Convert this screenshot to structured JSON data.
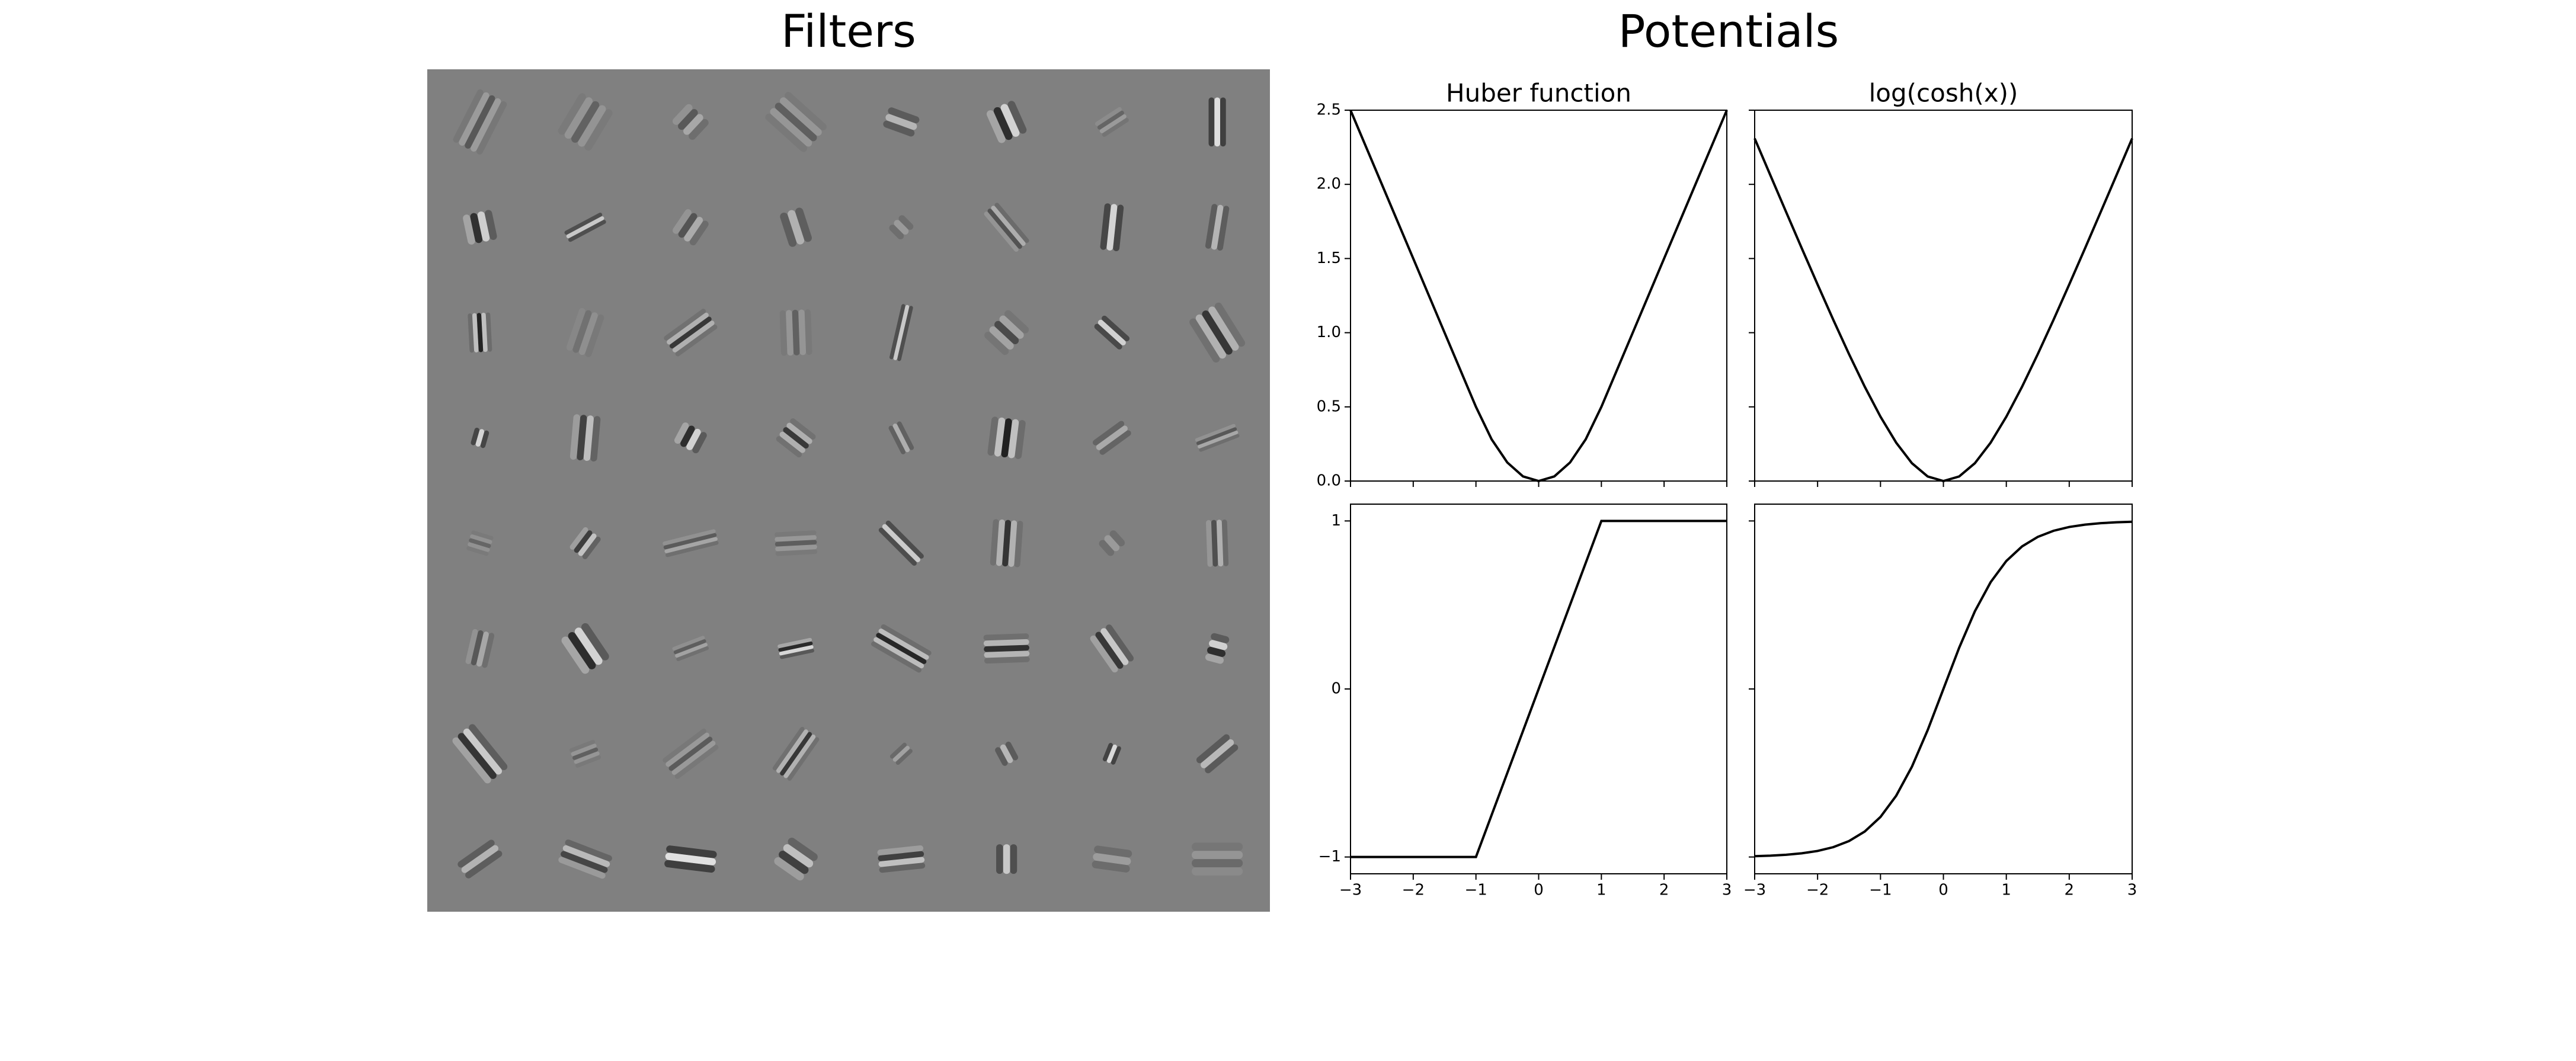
{
  "chart_data": [
    {
      "type": "image",
      "title": "Filters"
    },
    {
      "type": "line",
      "suptitle": "Potentials",
      "title": "Huber function",
      "color": "#000000",
      "x": [
        -3,
        -2.75,
        -2.5,
        -2.25,
        -2,
        -1.75,
        -1.5,
        -1.25,
        -1,
        -0.75,
        -0.5,
        -0.25,
        0,
        0.25,
        0.5,
        0.75,
        1,
        1.25,
        1.5,
        1.75,
        2,
        2.25,
        2.5,
        2.75,
        3
      ],
      "values": [
        2.5,
        2.25,
        2,
        1.75,
        1.5,
        1.25,
        1,
        0.75,
        0.5,
        0.28125,
        0.125,
        0.03125,
        0,
        0.03125,
        0.125,
        0.28125,
        0.5,
        0.75,
        1,
        1.25,
        1.5,
        1.75,
        2,
        2.25,
        2.5
      ],
      "xlim": [
        -3,
        3
      ],
      "ylim": [
        0,
        2.5
      ],
      "xticks": [
        -3,
        -2,
        -1,
        0,
        1,
        2,
        3
      ],
      "yticks": [
        {
          "value": 0,
          "label": "0.0"
        },
        0.5,
        {
          "value": 1,
          "label": "1.0"
        },
        1.5,
        {
          "value": 2,
          "label": "2.0"
        },
        2.5
      ],
      "xtick_labels": false,
      "ytick_labels": true
    },
    {
      "type": "line",
      "title": "log(cosh(x))",
      "color": "#000000",
      "x": [
        -3,
        -2.75,
        -2.5,
        -2.25,
        -2,
        -1.75,
        -1.5,
        -1.25,
        -1,
        -0.75,
        -0.5,
        -0.25,
        0,
        0.25,
        0.5,
        0.75,
        1,
        1.25,
        1.5,
        1.75,
        2,
        2.25,
        2.5,
        2.75,
        3
      ],
      "values": [
        2.3093,
        2.0609,
        1.8136,
        1.5679,
        1.325,
        1.0866,
        0.8555,
        0.6357,
        0.4338,
        0.2583,
        0.1201,
        0.0309,
        0,
        0.0309,
        0.1201,
        0.2583,
        0.4338,
        0.6357,
        0.8555,
        1.0866,
        1.325,
        1.5679,
        1.8136,
        2.0609,
        2.3093
      ],
      "xlim": [
        -3,
        3
      ],
      "ylim": [
        0,
        2.5
      ],
      "xticks": [
        -3,
        -2,
        -1,
        0,
        1,
        2,
        3
      ],
      "yticks": [
        0,
        0.5,
        1,
        1.5,
        2,
        2.5
      ],
      "xtick_labels": false,
      "ytick_labels": false
    },
    {
      "type": "line",
      "color": "#000000",
      "x": [
        -3,
        -2.75,
        -2.5,
        -2.25,
        -2,
        -1.75,
        -1.5,
        -1.25,
        -1,
        -0.75,
        -0.5,
        -0.25,
        0,
        0.25,
        0.5,
        0.75,
        1,
        1.25,
        1.5,
        1.75,
        2,
        2.25,
        2.5,
        2.75,
        3
      ],
      "values": [
        -1,
        -1,
        -1,
        -1,
        -1,
        -1,
        -1,
        -1,
        -1,
        -0.75,
        -0.5,
        -0.25,
        0,
        0.25,
        0.5,
        0.75,
        1,
        1,
        1,
        1,
        1,
        1,
        1,
        1,
        1
      ],
      "xlim": [
        -3,
        3
      ],
      "ylim": [
        -1.1,
        1.1
      ],
      "xticks": [
        {
          "value": -3,
          "label": "−3"
        },
        {
          "value": -2,
          "label": "−2"
        },
        {
          "value": -1,
          "label": "−1"
        },
        0,
        1,
        2,
        3
      ],
      "yticks": [
        {
          "value": -1,
          "label": "−1"
        },
        0,
        1
      ],
      "xtick_labels": true,
      "ytick_labels": true
    },
    {
      "type": "line",
      "color": "#000000",
      "x": [
        -3,
        -2.75,
        -2.5,
        -2.25,
        -2,
        -1.75,
        -1.5,
        -1.25,
        -1,
        -0.75,
        -0.5,
        -0.25,
        0,
        0.25,
        0.5,
        0.75,
        1,
        1.25,
        1.5,
        1.75,
        2,
        2.25,
        2.5,
        2.75,
        3
      ],
      "values": [
        -0.9951,
        -0.9919,
        -0.9866,
        -0.978,
        -0.964,
        -0.9414,
        -0.9051,
        -0.8483,
        -0.7616,
        -0.6351,
        -0.4621,
        -0.2449,
        0,
        0.2449,
        0.4621,
        0.6351,
        0.7616,
        0.8483,
        0.9051,
        0.9414,
        0.964,
        0.978,
        0.9866,
        0.9919,
        0.9951
      ],
      "xlim": [
        -3,
        3
      ],
      "ylim": [
        -1.1,
        1.1
      ],
      "xticks": [
        {
          "value": -3,
          "label": "−3"
        },
        {
          "value": -2,
          "label": "−2"
        },
        {
          "value": -1,
          "label": "−1"
        },
        0,
        1,
        2,
        3
      ],
      "yticks": [
        -1,
        0,
        1
      ],
      "xtick_labels": true,
      "ytick_labels": false
    }
  ]
}
